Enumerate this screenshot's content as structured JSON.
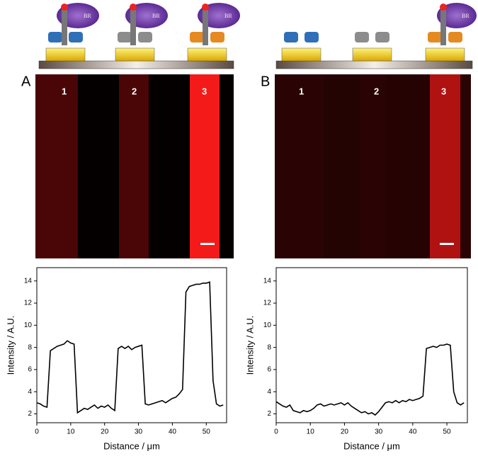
{
  "diagram_label": "BR",
  "panels": [
    {
      "label": "A",
      "stripes": [
        "1",
        "2",
        "3"
      ]
    },
    {
      "label": "B",
      "stripes": [
        "1",
        "2",
        "3"
      ]
    }
  ],
  "chart_data": [
    {
      "type": "line",
      "x_label": "Distance / μm",
      "y_label": "Intensity / A.U.",
      "x": [
        0,
        1,
        2,
        3,
        4,
        5,
        6,
        7,
        8,
        9,
        10,
        11,
        12,
        13,
        14,
        15,
        16,
        17,
        18,
        19,
        20,
        21,
        22,
        23,
        24,
        25,
        26,
        27,
        28,
        29,
        30,
        31,
        32,
        33,
        34,
        35,
        36,
        37,
        38,
        39,
        40,
        41,
        42,
        43,
        44,
        45,
        46,
        47,
        48,
        49,
        50,
        51,
        52,
        53,
        54,
        55
      ],
      "series": [
        {
          "color": "#000000",
          "values": [
            3.0,
            2.9,
            2.7,
            2.6,
            7.7,
            7.9,
            8.1,
            8.2,
            8.3,
            8.6,
            8.4,
            8.3,
            2.1,
            2.3,
            2.5,
            2.4,
            2.6,
            2.8,
            2.5,
            2.7,
            2.6,
            2.8,
            2.5,
            2.3,
            7.9,
            8.1,
            7.9,
            8.1,
            7.8,
            8.0,
            8.1,
            8.2,
            2.9,
            2.8,
            2.9,
            3.0,
            3.1,
            3.2,
            3.0,
            3.2,
            3.4,
            3.5,
            3.8,
            4.2,
            13.0,
            13.5,
            13.6,
            13.7,
            13.7,
            13.8,
            13.8,
            13.9,
            5.0,
            2.9,
            2.7,
            2.8
          ]
        }
      ],
      "xlim": [
        0,
        56
      ],
      "ylim": [
        1.2,
        15.2
      ],
      "xticks": [
        0,
        10,
        20,
        30,
        40,
        50
      ],
      "yticks": [
        2,
        4,
        6,
        8,
        10,
        12,
        14
      ]
    },
    {
      "type": "line",
      "x_label": "Distance / μm",
      "y_label": "Intensity / A.U.",
      "x": [
        0,
        1,
        2,
        3,
        4,
        5,
        6,
        7,
        8,
        9,
        10,
        11,
        12,
        13,
        14,
        15,
        16,
        17,
        18,
        19,
        20,
        21,
        22,
        23,
        24,
        25,
        26,
        27,
        28,
        29,
        30,
        31,
        32,
        33,
        34,
        35,
        36,
        37,
        38,
        39,
        40,
        41,
        42,
        43,
        44,
        45,
        46,
        47,
        48,
        49,
        50,
        51,
        52,
        53,
        54,
        55
      ],
      "series": [
        {
          "color": "#000000",
          "values": [
            3.1,
            2.9,
            2.7,
            2.6,
            2.8,
            2.3,
            2.2,
            2.1,
            2.3,
            2.2,
            2.3,
            2.5,
            2.8,
            2.9,
            2.7,
            2.8,
            2.9,
            2.8,
            2.9,
            3.0,
            2.8,
            3.0,
            2.7,
            2.5,
            2.3,
            2.1,
            2.2,
            2.0,
            2.1,
            1.9,
            2.2,
            2.6,
            3.0,
            3.1,
            3.0,
            3.2,
            3.0,
            3.2,
            3.1,
            3.3,
            3.2,
            3.3,
            3.4,
            3.6,
            7.9,
            8.0,
            8.1,
            8.0,
            8.2,
            8.2,
            8.3,
            8.2,
            4.0,
            3.0,
            2.8,
            3.0
          ]
        }
      ],
      "xlim": [
        0,
        56
      ],
      "ylim": [
        1.2,
        15.2
      ],
      "xticks": [
        0,
        10,
        20,
        30,
        40,
        50
      ],
      "yticks": [
        2,
        4,
        6,
        8,
        10,
        12,
        14
      ]
    }
  ]
}
